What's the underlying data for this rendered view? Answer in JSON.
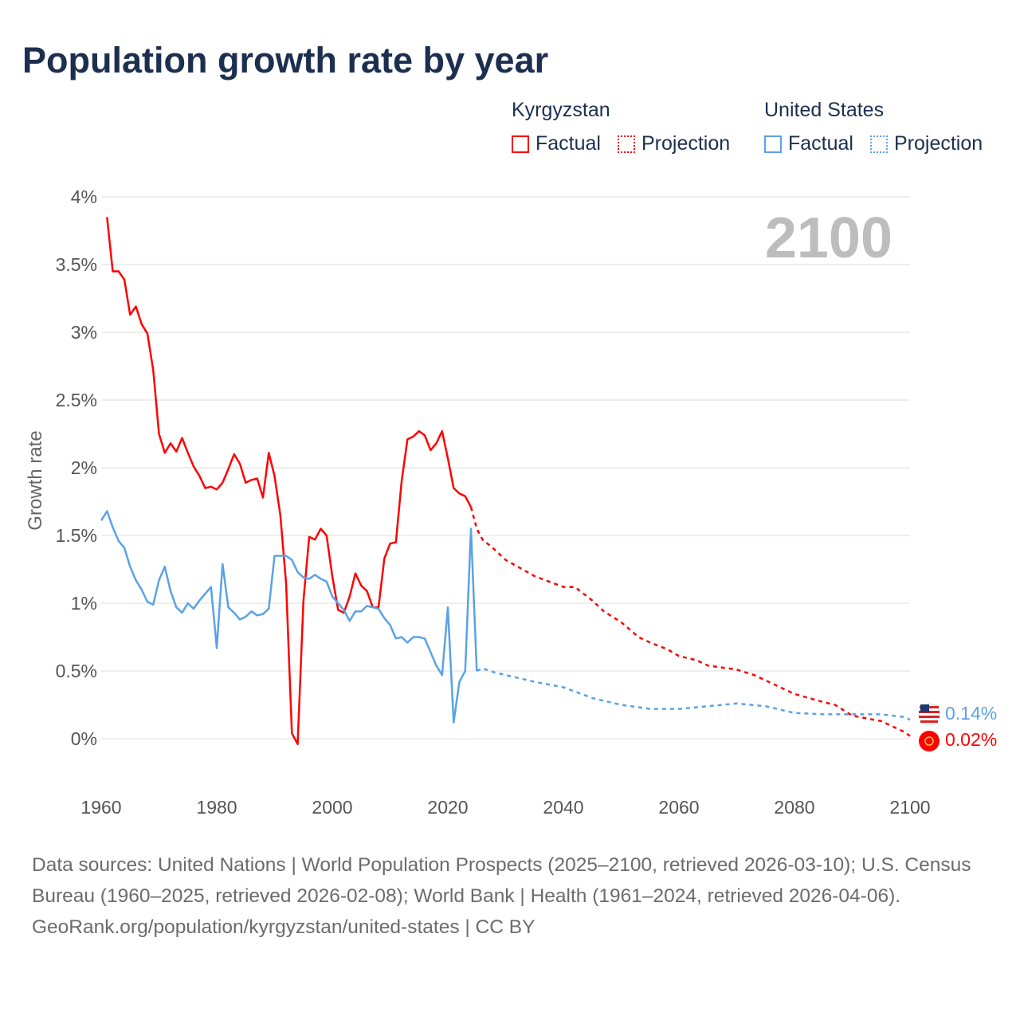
{
  "title": "Population growth rate by year",
  "legend": {
    "groups": [
      {
        "name": "Kyrgyzstan",
        "factual": "Factual",
        "projection": "Projection",
        "color": "#ff0000"
      },
      {
        "name": "United States",
        "factual": "Factual",
        "projection": "Projection",
        "color": "#5aa2e6"
      }
    ]
  },
  "year_display": "2100",
  "end_labels": {
    "us": "0.14%",
    "kg": "0.02%"
  },
  "chart_data": {
    "type": "line",
    "title": "Population growth rate by year",
    "xlabel": "",
    "ylabel": "Growth rate",
    "xlim": [
      1960,
      2100
    ],
    "ylim": [
      -0.25,
      4
    ],
    "x_ticks": [
      "1960",
      "1980",
      "2000",
      "2020",
      "2040",
      "2060",
      "2080",
      "2100"
    ],
    "y_ticks": [
      "0%",
      "0.5%",
      "1%",
      "1.5%",
      "2%",
      "2.5%",
      "3%",
      "3.5%",
      "4%"
    ],
    "y_tick_values": [
      0,
      0.5,
      1,
      1.5,
      2,
      2.5,
      3,
      3.5,
      4
    ],
    "grid": true,
    "series": [
      {
        "name": "Kyrgyzstan Factual",
        "color": "#ff0000",
        "dashed": false,
        "x": [
          1961,
          1962,
          1963,
          1964,
          1965,
          1966,
          1967,
          1968,
          1969,
          1970,
          1971,
          1972,
          1973,
          1974,
          1975,
          1976,
          1977,
          1978,
          1979,
          1980,
          1981,
          1982,
          1983,
          1984,
          1985,
          1986,
          1987,
          1988,
          1989,
          1990,
          1991,
          1992,
          1993,
          1994,
          1995,
          1996,
          1997,
          1998,
          1999,
          2000,
          2001,
          2002,
          2003,
          2004,
          2005,
          2006,
          2007,
          2008,
          2009,
          2010,
          2011,
          2012,
          2013,
          2014,
          2015,
          2016,
          2017,
          2018,
          2019,
          2020,
          2021,
          2022,
          2023,
          2024
        ],
        "y": [
          3.85,
          3.45,
          3.45,
          3.39,
          3.13,
          3.19,
          3.06,
          2.99,
          2.72,
          2.25,
          2.11,
          2.18,
          2.12,
          2.22,
          2.11,
          2.01,
          1.94,
          1.85,
          1.86,
          1.84,
          1.89,
          1.99,
          2.1,
          2.03,
          1.89,
          1.91,
          1.92,
          1.78,
          2.11,
          1.94,
          1.65,
          1.15,
          0.04,
          -0.04,
          1.02,
          1.49,
          1.47,
          1.55,
          1.5,
          1.2,
          0.95,
          0.93,
          1.05,
          1.22,
          1.13,
          1.09,
          0.97,
          0.97,
          1.33,
          1.44,
          1.45,
          1.9,
          2.21,
          2.23,
          2.27,
          2.24,
          2.13,
          2.18,
          2.27,
          2.07,
          1.85,
          1.81,
          1.79,
          1.71
        ]
      },
      {
        "name": "Kyrgyzstan Projection",
        "color": "#ff0000",
        "dashed": true,
        "x": [
          2024,
          2025,
          2026,
          2028,
          2030,
          2035,
          2040,
          2042,
          2045,
          2047,
          2050,
          2053,
          2055,
          2058,
          2060,
          2063,
          2065,
          2070,
          2073,
          2075,
          2080,
          2085,
          2087,
          2090,
          2095,
          2099,
          2100
        ],
        "y": [
          1.71,
          1.55,
          1.47,
          1.4,
          1.32,
          1.2,
          1.12,
          1.12,
          1.02,
          0.94,
          0.86,
          0.75,
          0.71,
          0.66,
          0.61,
          0.58,
          0.54,
          0.51,
          0.47,
          0.43,
          0.33,
          0.27,
          0.25,
          0.17,
          0.13,
          0.05,
          0.02
        ]
      },
      {
        "name": "United States Factual",
        "color": "#5aa2e6",
        "dashed": false,
        "x": [
          1960,
          1961,
          1962,
          1963,
          1964,
          1965,
          1966,
          1967,
          1968,
          1969,
          1970,
          1971,
          1972,
          1973,
          1974,
          1975,
          1976,
          1977,
          1978,
          1979,
          1980,
          1981,
          1982,
          1983,
          1984,
          1985,
          1986,
          1987,
          1988,
          1989,
          1990,
          1991,
          1992,
          1993,
          1994,
          1995,
          1996,
          1997,
          1998,
          1999,
          2000,
          2001,
          2002,
          2003,
          2004,
          2005,
          2006,
          2007,
          2008,
          2009,
          2010,
          2011,
          2012,
          2013,
          2014,
          2015,
          2016,
          2017,
          2018,
          2019,
          2020,
          2021,
          2022,
          2023,
          2024,
          2025
        ],
        "y": [
          1.61,
          1.68,
          1.56,
          1.46,
          1.41,
          1.27,
          1.17,
          1.1,
          1.01,
          0.99,
          1.17,
          1.27,
          1.09,
          0.97,
          0.93,
          1.0,
          0.96,
          1.02,
          1.07,
          1.12,
          0.67,
          1.29,
          0.97,
          0.93,
          0.88,
          0.9,
          0.94,
          0.91,
          0.92,
          0.96,
          1.35,
          1.35,
          1.35,
          1.32,
          1.23,
          1.19,
          1.18,
          1.21,
          1.18,
          1.16,
          1.05,
          1.0,
          0.95,
          0.87,
          0.94,
          0.94,
          0.98,
          0.97,
          0.96,
          0.89,
          0.84,
          0.74,
          0.75,
          0.71,
          0.75,
          0.75,
          0.74,
          0.64,
          0.54,
          0.47,
          0.97,
          0.12,
          0.42,
          0.5,
          1.55,
          0.5
        ]
      },
      {
        "name": "United States Projection",
        "color": "#5aa2e6",
        "dashed": true,
        "x": [
          2025,
          2026,
          2028,
          2030,
          2035,
          2040,
          2045,
          2050,
          2055,
          2060,
          2065,
          2070,
          2075,
          2080,
          2085,
          2090,
          2095,
          2099,
          2100
        ],
        "y": [
          0.5,
          0.52,
          0.49,
          0.47,
          0.42,
          0.38,
          0.3,
          0.25,
          0.22,
          0.22,
          0.24,
          0.26,
          0.24,
          0.19,
          0.18,
          0.18,
          0.18,
          0.16,
          0.14
        ]
      }
    ]
  },
  "footer": {
    "sources": "Data sources: United Nations | World Population Prospects (2025–2100, retrieved 2026-03-10); U.S. Census Bureau (1960–2025, retrieved 2026-02-08); World Bank | Health (1961–2024, retrieved 2026-04-06).",
    "credit": "GeoRank.org/population/kyrgyzstan/united-states | CC BY"
  }
}
